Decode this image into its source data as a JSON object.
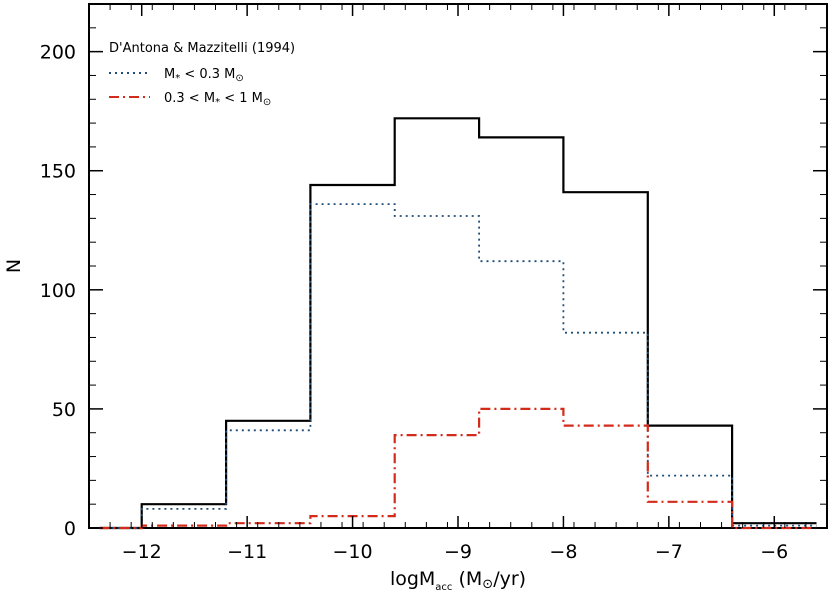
{
  "chart_data": {
    "type": "step",
    "title": "",
    "xlabel": "logM",
    "xlabel_sub": "acc",
    "xlabel_unit_prefix": " (M",
    "xlabel_unit_suffix": "/yr)",
    "ylabel": "N",
    "xlim": [
      -12.5,
      -5.5
    ],
    "ylim": [
      0,
      220
    ],
    "xticks": [
      -12,
      -11,
      -10,
      -9,
      -8,
      -7,
      -6
    ],
    "xtick_labels": [
      "−12",
      "−11",
      "−10",
      "−9",
      "−8",
      "−7",
      "−6"
    ],
    "yticks": [
      0,
      50,
      100,
      150,
      200
    ],
    "ytick_labels": [
      "0",
      "50",
      "100",
      "150",
      "200"
    ],
    "bin_edges": [
      -12.4,
      -12.0,
      -11.2,
      -10.4,
      -9.6,
      -8.8,
      -8.0,
      -7.2,
      -6.4,
      -5.6
    ],
    "series": [
      {
        "name": "D'Antona & Mazzitelli (1994)",
        "style": "solid",
        "color": "#000000",
        "values": [
          0,
          10,
          45,
          144,
          172,
          164,
          141,
          43,
          2
        ]
      },
      {
        "name": "M* < 0.3 M⊙",
        "style": "dotted",
        "color": "#1f4e79",
        "values": [
          0,
          8,
          41,
          136,
          131,
          112,
          82,
          22,
          1
        ]
      },
      {
        "name": "0.3 < M* < 1 M⊙",
        "style": "dashdot",
        "color": "#d42a1a",
        "values": [
          0,
          1,
          2,
          5,
          39,
          50,
          43,
          11,
          0
        ]
      }
    ],
    "legend": {
      "position": "top-left",
      "header": "D'Antona & Mazzitelli (1994)",
      "entries": [
        {
          "line": "dotted",
          "color": "#1f4e79",
          "text_pre": "M",
          "text_sub": "*",
          "text_post": " < 0.3 M",
          "text_sun": "⊙"
        },
        {
          "line": "dashdot",
          "color": "#d42a1a",
          "text_pre": "0.3 < M",
          "text_sub": "*",
          "text_post": " < 1 M",
          "text_sun": "⊙"
        }
      ]
    },
    "grid": false
  }
}
